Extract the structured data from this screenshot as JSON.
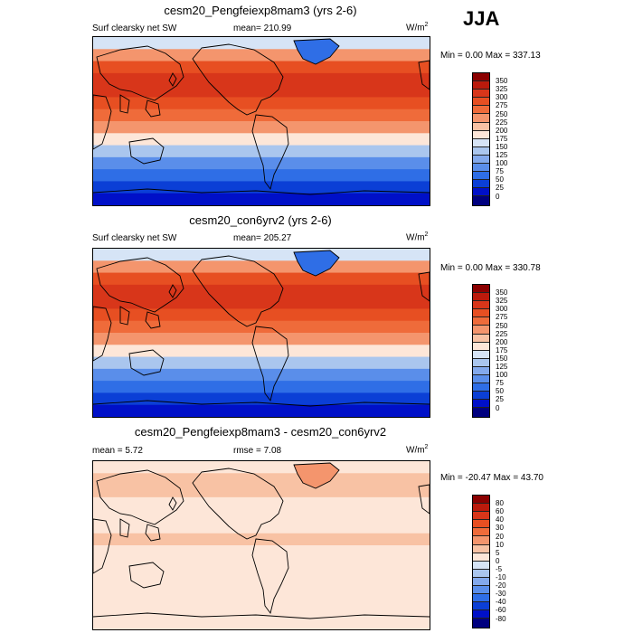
{
  "season": "JJA",
  "panels": [
    {
      "title": "cesm20_Pengfeiexp8mam3 (yrs 2-6)",
      "left_label": "Surf clearsky net SW",
      "stat_label": "mean= 210.99",
      "unit_base": "W/m",
      "unit_exp": "2",
      "minmax": "Min =   0.00 Max = 337.13",
      "levels": [
        "350",
        "325",
        "300",
        "275",
        "250",
        "225",
        "200",
        "175",
        "150",
        "125",
        "100",
        "75",
        "50",
        "25",
        "0"
      ],
      "colors": [
        "#8b0000",
        "#bb1a0c",
        "#d8361a",
        "#e74f22",
        "#ef6b3a",
        "#f4956d",
        "#f8c2a4",
        "#fde6d8",
        "#d6e4f6",
        "#aac6ee",
        "#83a9ec",
        "#5a8eea",
        "#2f6ee6",
        "#0b3fd6",
        "#0010c8",
        "#00007f"
      ],
      "map": {
        "band_colors": [
          "#d6e4f6",
          "#f4956d",
          "#e74f22",
          "#d8361a",
          "#d8361a",
          "#e74f22",
          "#ef6b3a",
          "#f4956d",
          "#fde6d8",
          "#aac6ee",
          "#5a8eea",
          "#2f6ee6",
          "#0b3fd6",
          "#0010c8"
        ],
        "greenland_color": "#2f6ee6"
      }
    },
    {
      "title": "cesm20_con6yrv2 (yrs 2-6)",
      "left_label": "Surf clearsky net SW",
      "stat_label": "mean= 205.27",
      "unit_base": "W/m",
      "unit_exp": "2",
      "minmax": "Min =   0.00 Max = 330.78",
      "levels": [
        "350",
        "325",
        "300",
        "275",
        "250",
        "225",
        "200",
        "175",
        "150",
        "125",
        "100",
        "75",
        "50",
        "25",
        "0"
      ],
      "colors": [
        "#8b0000",
        "#bb1a0c",
        "#d8361a",
        "#e74f22",
        "#ef6b3a",
        "#f4956d",
        "#f8c2a4",
        "#fde6d8",
        "#d6e4f6",
        "#aac6ee",
        "#83a9ec",
        "#5a8eea",
        "#2f6ee6",
        "#0b3fd6",
        "#0010c8",
        "#00007f"
      ],
      "map": {
        "band_colors": [
          "#d6e4f6",
          "#f4956d",
          "#e74f22",
          "#d8361a",
          "#d8361a",
          "#e74f22",
          "#ef6b3a",
          "#f4956d",
          "#fde6d8",
          "#aac6ee",
          "#5a8eea",
          "#2f6ee6",
          "#0b3fd6",
          "#0010c8"
        ],
        "greenland_color": "#2f6ee6"
      }
    },
    {
      "title": "cesm20_Pengfeiexp8mam3 - cesm20_con6yrv2",
      "left_label": "mean =   5.72",
      "stat_label": "rmse =   7.08",
      "unit_base": "W/m",
      "unit_exp": "2",
      "minmax": "Min = -20.47 Max =  43.70",
      "levels": [
        "80",
        "60",
        "40",
        "30",
        "20",
        "10",
        "5",
        "0",
        "-5",
        "-10",
        "-20",
        "-30",
        "-40",
        "-60",
        "-80"
      ],
      "colors": [
        "#8b0000",
        "#bb1a0c",
        "#d8361a",
        "#e74f22",
        "#ef6b3a",
        "#f4956d",
        "#f8c2a4",
        "#fde6d8",
        "#d6e4f6",
        "#aac6ee",
        "#83a9ec",
        "#5a8eea",
        "#2f6ee6",
        "#0b3fd6",
        "#0010c8",
        "#00007f"
      ],
      "map": {
        "band_colors": [
          "#fde6d8",
          "#f8c2a4",
          "#f8c2a4",
          "#fde6d8",
          "#fde6d8",
          "#fde6d8",
          "#f8c2a4",
          "#fde6d8",
          "#fde6d8",
          "#fde6d8",
          "#fde6d8",
          "#fde6d8",
          "#fde6d8",
          "#fde6d8"
        ],
        "greenland_color": "#f4956d"
      }
    }
  ],
  "chart_data": {
    "type": "heatmap",
    "season": "JJA",
    "variable": "Surf clearsky net SW",
    "units": "W/m2",
    "panels": [
      {
        "title": "cesm20_Pengfeiexp8mam3 (yrs 2-6)",
        "mean": 210.99,
        "min": 0.0,
        "max": 337.13,
        "contour_levels": [
          0,
          25,
          50,
          75,
          100,
          125,
          150,
          175,
          200,
          225,
          250,
          275,
          300,
          325,
          350
        ]
      },
      {
        "title": "cesm20_con6yrv2 (yrs 2-6)",
        "mean": 205.27,
        "min": 0.0,
        "max": 330.78,
        "contour_levels": [
          0,
          25,
          50,
          75,
          100,
          125,
          150,
          175,
          200,
          225,
          250,
          275,
          300,
          325,
          350
        ]
      },
      {
        "title": "cesm20_Pengfeiexp8mam3 - cesm20_con6yrv2",
        "mean": 5.72,
        "rmse": 7.08,
        "min": -20.47,
        "max": 43.7,
        "contour_levels": [
          -80,
          -60,
          -40,
          -30,
          -20,
          -10,
          -5,
          0,
          5,
          10,
          20,
          30,
          40,
          60,
          80
        ]
      }
    ]
  }
}
